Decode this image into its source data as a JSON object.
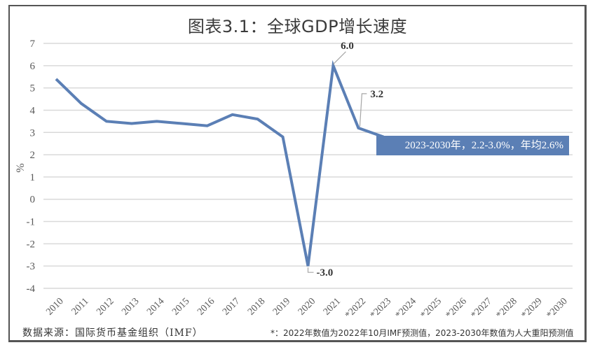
{
  "header": {
    "title": "图表3.1：全球GDP增长速度"
  },
  "footer": {
    "source": "数据来源：国际货币基金组织（IMF）",
    "note": "*：2022年数值为2022年10月IMF预测值，2023-2030年数值为人大重阳预测值"
  },
  "annotation": {
    "text": "2023-2030年，2.2-3.0%，年均2.6%",
    "color": "#5b7fb5"
  },
  "chart_data": {
    "type": "line",
    "title": "图表3.1：全球GDP增长速度",
    "xlabel": "",
    "ylabel": "%",
    "ylim": [
      -4,
      7
    ],
    "yticks": [
      7,
      6,
      5,
      4,
      3,
      2,
      1,
      0,
      -1,
      -2,
      -3,
      -4
    ],
    "grid": true,
    "legend": "none",
    "categories": [
      "2010",
      "2011",
      "2012",
      "2013",
      "2014",
      "2015",
      "2016",
      "2017",
      "2018",
      "2019",
      "2020",
      "2021",
      "*2022",
      "*2023",
      "*2024",
      "*2025",
      "*2026",
      "*2027",
      "*2028",
      "*2029",
      "*2030"
    ],
    "series": [
      {
        "name": "全球GDP增长速度",
        "color": "#5b7fb5",
        "values": [
          5.4,
          4.3,
          3.5,
          3.4,
          3.5,
          3.4,
          3.3,
          3.8,
          3.6,
          2.8,
          -3.0,
          6.0,
          3.2,
          2.8,
          null,
          null,
          null,
          null,
          null,
          null,
          null
        ]
      }
    ],
    "data_labels": [
      {
        "category": "2020",
        "text": "-3.0"
      },
      {
        "category": "2021",
        "text": "6.0"
      },
      {
        "category": "*2022",
        "text": "3.2"
      }
    ],
    "annotations": [
      "2023-2030年，2.2-3.0%，年均2.6%"
    ]
  }
}
